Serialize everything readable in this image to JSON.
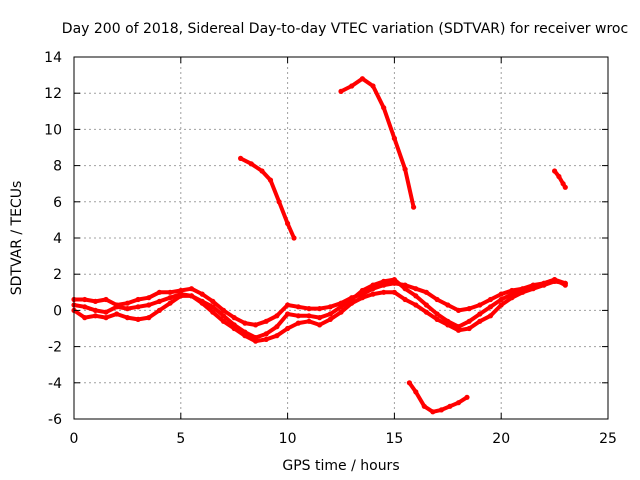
{
  "chart_data": {
    "type": "scatter",
    "title": "Day 200 of 2018, Sidereal Day-to-day VTEC variation (SDTVAR) for receiver wroc",
    "xlabel": "GPS time / hours",
    "ylabel": "SDTVAR / TECUs",
    "xlim": [
      0,
      25
    ],
    "ylim": [
      -6,
      14
    ],
    "xticks": [
      "0",
      "5",
      "10",
      "15",
      "20",
      "25"
    ],
    "yticks": [
      "-6",
      "-4",
      "-2",
      "0",
      "2",
      "4",
      "6",
      "8",
      "10",
      "12",
      "14"
    ],
    "grid": true,
    "legend": "none",
    "series_color": "#ff0000",
    "series": [
      {
        "name": "track-a",
        "x": [
          0,
          0.5,
          1,
          1.5,
          2,
          2.5,
          3,
          3.5,
          4,
          4.5,
          5,
          5.5,
          6,
          6.5,
          7,
          7.5,
          8,
          8.5,
          9,
          9.5,
          10,
          10.5,
          11,
          11.5,
          12,
          12.5,
          13,
          13.5,
          14,
          14.5,
          15,
          15.5,
          16,
          16.5,
          17,
          17.5,
          18,
          18.5,
          19,
          19.5,
          20,
          20.5,
          21,
          21.5,
          22,
          22.5,
          23
        ],
        "y": [
          0.6,
          0.6,
          0.5,
          0.6,
          0.3,
          0.4,
          0.6,
          0.7,
          1.0,
          1.0,
          1.1,
          1.2,
          0.9,
          0.5,
          0.0,
          -0.4,
          -0.7,
          -0.8,
          -0.6,
          -0.3,
          0.3,
          0.2,
          0.1,
          0.1,
          0.2,
          0.4,
          0.7,
          0.9,
          1.2,
          1.4,
          1.5,
          1.4,
          1.2,
          1.0,
          0.6,
          0.3,
          0.0,
          0.1,
          0.3,
          0.6,
          0.9,
          1.1,
          1.2,
          1.4,
          1.5,
          1.7,
          1.5
        ]
      },
      {
        "name": "track-b",
        "x": [
          0,
          0.5,
          1,
          1.5,
          2,
          2.5,
          3,
          3.5,
          4,
          4.5,
          5,
          5.5,
          6,
          6.5,
          7,
          7.5,
          8,
          8.5,
          9,
          9.5,
          10,
          10.5,
          11,
          11.5,
          12,
          12.5,
          13,
          13.5,
          14,
          14.5,
          15,
          15.5,
          16,
          16.5,
          17,
          17.5,
          18,
          18.5,
          19,
          19.5,
          20,
          20.5,
          21,
          21.5,
          22,
          22.5,
          23
        ],
        "y": [
          0.0,
          -0.4,
          -0.3,
          -0.4,
          -0.2,
          -0.4,
          -0.5,
          -0.4,
          0.0,
          0.4,
          0.8,
          0.8,
          0.4,
          -0.1,
          -0.6,
          -1.0,
          -1.4,
          -1.7,
          -1.6,
          -1.4,
          -1.0,
          -0.7,
          -0.6,
          -0.8,
          -0.5,
          -0.1,
          0.4,
          0.7,
          0.9,
          1.0,
          1.0,
          0.6,
          0.3,
          -0.1,
          -0.5,
          -0.8,
          -1.1,
          -1.0,
          -0.6,
          -0.3,
          0.3,
          0.7,
          1.0,
          1.2,
          1.4,
          1.6,
          1.5
        ]
      },
      {
        "name": "track-c",
        "x": [
          0,
          0.5,
          1,
          1.5,
          2,
          2.5,
          3,
          3.5,
          4,
          4.5,
          5,
          5.5,
          6,
          6.5,
          7,
          7.5,
          8,
          8.5,
          9,
          9.5,
          10,
          10.5,
          11,
          11.5,
          12,
          12.5,
          13,
          13.5,
          14,
          14.5,
          15,
          15.5,
          16,
          16.5,
          17,
          17.5,
          18,
          18.5,
          19,
          19.5,
          20,
          20.5,
          21,
          21.5,
          22,
          22.5,
          23
        ],
        "y": [
          0.3,
          0.2,
          0.0,
          -0.1,
          0.2,
          0.1,
          0.2,
          0.3,
          0.5,
          0.7,
          0.9,
          0.8,
          0.5,
          0.2,
          -0.3,
          -0.8,
          -1.2,
          -1.5,
          -1.3,
          -0.9,
          -0.2,
          -0.3,
          -0.3,
          -0.4,
          -0.2,
          0.2,
          0.6,
          1.1,
          1.4,
          1.6,
          1.7,
          1.2,
          0.8,
          0.3,
          -0.2,
          -0.6,
          -0.9,
          -0.6,
          -0.2,
          0.2,
          0.6,
          0.9,
          1.1,
          1.3,
          1.5,
          1.7,
          1.4
        ]
      },
      {
        "name": "segment-1",
        "x": [
          7.8,
          8.3,
          8.8,
          9.2,
          9.6,
          10.0,
          10.3
        ],
        "y": [
          8.4,
          8.1,
          7.7,
          7.2,
          6.0,
          4.8,
          4.0
        ]
      },
      {
        "name": "segment-2",
        "x": [
          12.5,
          13.0,
          13.5,
          14.0,
          14.5,
          15.0,
          15.5,
          15.9
        ],
        "y": [
          12.1,
          12.4,
          12.8,
          12.4,
          11.2,
          9.5,
          7.8,
          5.7
        ]
      },
      {
        "name": "segment-3",
        "x": [
          15.7,
          16.0,
          16.4,
          16.8,
          17.2,
          17.6,
          18.0,
          18.4
        ],
        "y": [
          -4.0,
          -4.5,
          -5.3,
          -5.6,
          -5.5,
          -5.3,
          -5.1,
          -4.8
        ]
      },
      {
        "name": "segment-4",
        "x": [
          22.5,
          22.7,
          22.9,
          23.0
        ],
        "y": [
          7.7,
          7.4,
          7.0,
          6.8
        ]
      }
    ]
  }
}
